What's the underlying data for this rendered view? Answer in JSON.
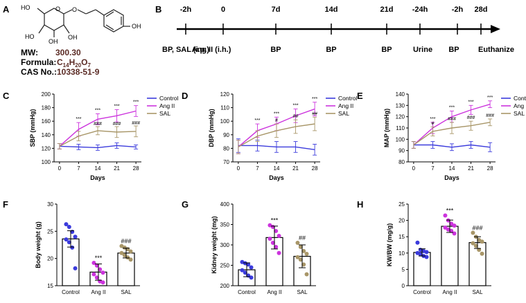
{
  "panels": {
    "A": "A",
    "B": "B",
    "C": "C",
    "D": "D",
    "E": "E",
    "F": "F",
    "G": "G",
    "H": "H"
  },
  "compound": {
    "name": "salidroside structure",
    "mw_label": "MW:",
    "mw_value": "300.30",
    "formula_label": "Formula:",
    "formula_c": "C",
    "formula_c_sub": "14",
    "formula_h": "H",
    "formula_h_sub": "20",
    "formula_o": "O",
    "formula_o_sub": "7",
    "cas_label": "CAS No.:",
    "cas_value": "10338-51-9",
    "atom_ho": "HO",
    "atom_o": "O",
    "atom_oh": "OH"
  },
  "timeline": {
    "ticks": [
      "-2h",
      "0",
      "7d",
      "14d",
      "21d",
      "-24h",
      "-2h",
      "28d"
    ],
    "events": [
      "BP, SAL (i.p.)",
      "Ang II (i.h.)",
      "BP",
      "BP",
      "BP",
      "Urine",
      "BP",
      "Euthanize"
    ]
  },
  "colors": {
    "control": "#3b3bdc",
    "angii": "#cc33dd",
    "sal": "#a89668"
  },
  "chart_data": [
    {
      "id": "C",
      "type": "line",
      "xlabel": "Days",
      "ylabel": "SBP (mmHg)",
      "x": [
        0,
        7,
        14,
        21,
        28
      ],
      "ylim": [
        100,
        200
      ],
      "yticks": [
        100,
        120,
        140,
        160,
        180,
        200
      ],
      "series": [
        {
          "name": "Control",
          "values": [
            123,
            122,
            121,
            124,
            122
          ],
          "err": [
            4,
            4,
            4,
            4,
            3
          ]
        },
        {
          "name": "Ang II",
          "values": [
            123,
            148,
            163,
            168,
            175
          ],
          "err": [
            4,
            10,
            8,
            9,
            8
          ]
        },
        {
          "name": "SAL",
          "values": [
            123,
            138,
            146,
            144,
            145
          ],
          "err": [
            4,
            7,
            6,
            8,
            8
          ]
        }
      ],
      "stars": [
        "",
        "***",
        "***",
        "***",
        "***"
      ],
      "hashes": [
        "",
        "",
        "###",
        "###",
        "###"
      ]
    },
    {
      "id": "D",
      "type": "line",
      "xlabel": "Days",
      "ylabel": "DBP (mmHg)",
      "x": [
        0,
        7,
        14,
        21,
        28
      ],
      "ylim": [
        70,
        120
      ],
      "yticks": [
        70,
        80,
        90,
        100,
        110,
        120
      ],
      "series": [
        {
          "name": "Control",
          "values": [
            82,
            82,
            81,
            81,
            79
          ],
          "err": [
            5,
            4,
            4,
            4,
            4
          ]
        },
        {
          "name": "Ang II",
          "values": [
            81,
            93,
            98,
            104,
            109
          ],
          "err": [
            5,
            5,
            5,
            5,
            5
          ]
        },
        {
          "name": "SAL",
          "values": [
            81,
            89,
            93,
            96,
            98
          ],
          "err": [
            5,
            4,
            5,
            5,
            5
          ]
        }
      ],
      "stars": [
        "",
        "***",
        "***",
        "***",
        "***"
      ],
      "hashes": [
        "",
        "",
        "#",
        "##",
        "##"
      ]
    },
    {
      "id": "E",
      "type": "line",
      "xlabel": "Days",
      "ylabel": "MAP (mmHg)",
      "x": [
        0,
        7,
        14,
        21,
        28
      ],
      "ylim": [
        80,
        140
      ],
      "yticks": [
        80,
        90,
        100,
        110,
        120,
        130,
        140
      ],
      "series": [
        {
          "name": "Control",
          "values": [
            95,
            95,
            93,
            95,
            93
          ],
          "err": [
            3,
            3,
            3,
            3,
            4
          ]
        },
        {
          "name": "Ang II",
          "values": [
            95,
            110,
            120,
            126,
            131
          ],
          "err": [
            3,
            5,
            5,
            4,
            3
          ]
        },
        {
          "name": "SAL",
          "values": [
            95,
            107,
            110,
            112,
            115
          ],
          "err": [
            3,
            4,
            5,
            4,
            3
          ]
        }
      ],
      "stars": [
        "",
        "***",
        "***",
        "***",
        "***"
      ],
      "hashes": [
        "",
        "#",
        "###",
        "###",
        "###"
      ]
    },
    {
      "id": "F",
      "type": "bar",
      "ylabel": "Body weight (g)",
      "categories": [
        "Control",
        "Ang II",
        "SAL"
      ],
      "values": [
        23.6,
        17.5,
        21.0
      ],
      "err": [
        1.5,
        1.5,
        0.9
      ],
      "ylim": [
        15,
        30
      ],
      "yticks": [
        15,
        20,
        25,
        30
      ],
      "points": [
        [
          26.3,
          25.8,
          24.9,
          24.0,
          23.5,
          23.0,
          22.0,
          18.2
        ],
        [
          19.2,
          18.7,
          18.0,
          17.4,
          17.1,
          16.5,
          15.8,
          15.6
        ],
        [
          22.3,
          22.0,
          21.7,
          21.3,
          21.0,
          20.6,
          20.2,
          19.8
        ]
      ],
      "annotations": [
        "",
        "***",
        "###"
      ]
    },
    {
      "id": "G",
      "type": "bar",
      "ylabel": "Kidney weight (mg)",
      "categories": [
        "Control",
        "Ang II",
        "SAL"
      ],
      "values": [
        239,
        318,
        272
      ],
      "err": [
        17,
        28,
        28
      ],
      "ylim": [
        200,
        400
      ],
      "yticks": [
        200,
        250,
        300,
        350,
        400
      ],
      "points": [
        [
          258,
          255,
          252,
          245,
          238,
          232,
          225,
          220
        ],
        [
          348,
          344,
          334,
          322,
          315,
          305,
          295,
          280
        ],
        [
          305,
          295,
          285,
          278,
          270,
          264,
          252,
          228
        ]
      ],
      "annotations": [
        "",
        "***",
        "##"
      ]
    },
    {
      "id": "H",
      "type": "bar",
      "ylabel": "KW/BW (mg/g)",
      "categories": [
        "Control",
        "Ang II",
        "SAL"
      ],
      "values": [
        10.2,
        18.2,
        13.2
      ],
      "err": [
        1.1,
        1.9,
        1.8
      ],
      "ylim": [
        0,
        25
      ],
      "yticks": [
        0,
        5,
        10,
        15,
        20,
        25
      ],
      "points": [
        [
          13.2,
          11.0,
          10.6,
          10.3,
          10.0,
          9.6,
          9.1,
          8.8
        ],
        [
          21.5,
          20.0,
          19.0,
          18.4,
          17.8,
          17.2,
          16.8,
          16.0
        ],
        [
          16.2,
          15.0,
          14.0,
          13.5,
          13.0,
          12.2,
          11.0,
          9.8
        ]
      ],
      "annotations": [
        "",
        "***",
        "###"
      ]
    }
  ]
}
